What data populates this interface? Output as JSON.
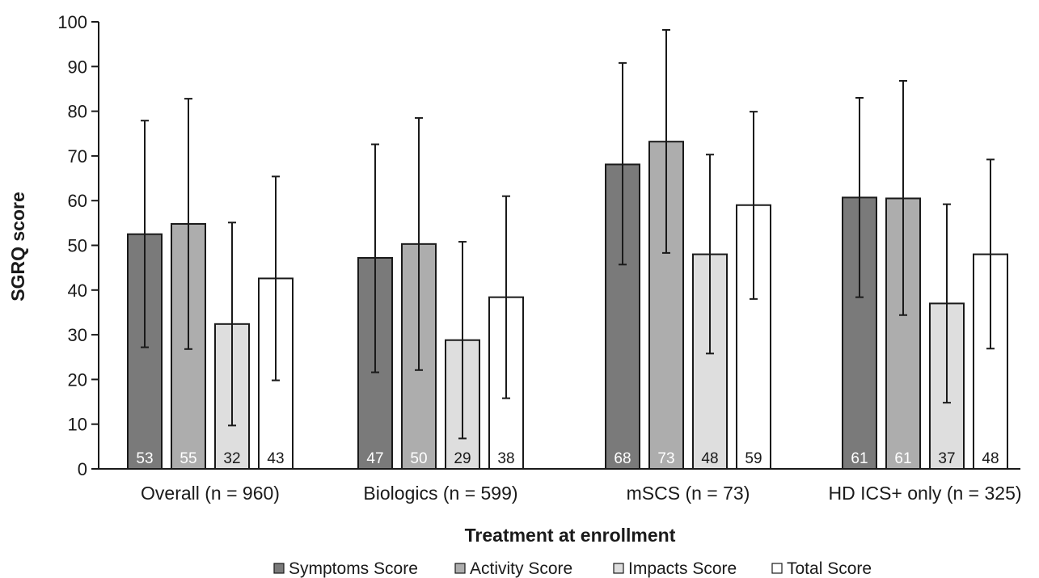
{
  "chart_data": {
    "type": "bar",
    "title": "",
    "xlabel": "Treatment at enrollment",
    "ylabel": "SGRQ score",
    "ylim": [
      0,
      100
    ],
    "yticks": [
      0,
      10,
      20,
      30,
      40,
      50,
      60,
      70,
      80,
      90,
      100
    ],
    "grid": false,
    "legend_position": "bottom",
    "categories": [
      "Overall (n = 960)",
      "Biologics (n = 599)",
      "mSCS (n = 73)",
      "HD ICS+ only (n = 325)"
    ],
    "series": [
      {
        "name": "Symptoms Score",
        "color": "#7a7a7a",
        "label_color": "#ffffff",
        "values": [
          53,
          47,
          68,
          61
        ],
        "plot_values": [
          52.5,
          47.2,
          68.1,
          60.7
        ],
        "error_low": [
          27.2,
          21.6,
          45.7,
          38.4
        ],
        "error_high": [
          77.9,
          72.6,
          90.8,
          83.0
        ]
      },
      {
        "name": "Activity Score",
        "color": "#adadad",
        "label_color": "#ffffff",
        "values": [
          55,
          50,
          73,
          61
        ],
        "plot_values": [
          54.8,
          50.3,
          73.2,
          60.5
        ],
        "error_low": [
          26.8,
          22.1,
          48.3,
          34.4
        ],
        "error_high": [
          82.8,
          78.5,
          98.2,
          86.8
        ]
      },
      {
        "name": "Impacts Score",
        "color": "#dedede",
        "label_color": "#1a1a1a",
        "values": [
          32,
          29,
          48,
          37
        ],
        "plot_values": [
          32.4,
          28.8,
          48.0,
          37.0
        ],
        "error_low": [
          9.7,
          6.8,
          25.8,
          14.8
        ],
        "error_high": [
          55.1,
          50.8,
          70.3,
          59.2
        ]
      },
      {
        "name": "Total Score",
        "color": "#ffffff",
        "label_color": "#1a1a1a",
        "values": [
          43,
          38,
          59,
          48
        ],
        "plot_values": [
          42.6,
          38.4,
          59.0,
          48.0
        ],
        "error_low": [
          19.8,
          15.8,
          38.0,
          26.9
        ],
        "error_high": [
          65.4,
          61.0,
          79.9,
          69.2
        ]
      }
    ]
  }
}
